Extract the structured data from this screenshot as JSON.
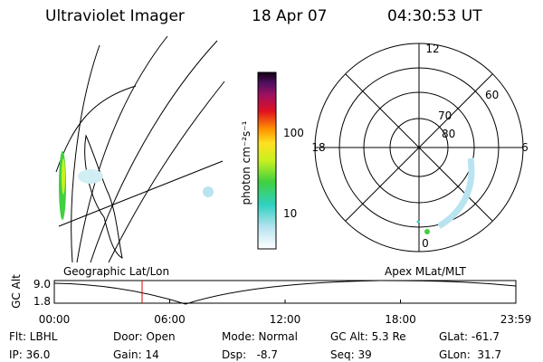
{
  "header": {
    "instrument": "Ultraviolet Imager",
    "date": "18 Apr 07",
    "time": "04:30:53 UT"
  },
  "colorbar": {
    "label": "photon cm⁻²s⁻¹",
    "ticks": [
      "100",
      "10"
    ]
  },
  "polar": {
    "labels": {
      "top": "12",
      "left": "18",
      "right": "6",
      "bottom": "0"
    },
    "circles": [
      "80",
      "70",
      "60"
    ]
  },
  "timeline": {
    "ylabel": "GC Alt",
    "yticks": [
      "9.0",
      "1.8"
    ],
    "left_title": "Geographic Lat/Lon",
    "right_title": "Apex MLat/MLT",
    "xticks": [
      "00:00",
      "06:00",
      "12:00",
      "18:00",
      "23:59"
    ]
  },
  "info": {
    "rows": [
      [
        "Flt: LBHL",
        "Door: Open",
        "Mode: Normal",
        "GC Alt: 5.3 Re",
        "GLat: -61.7"
      ],
      [
        "IP: 36.0",
        "Gain: 14",
        "Dsp:   -8.7",
        "Seq: 39",
        "GLon:  31.7"
      ]
    ]
  }
}
